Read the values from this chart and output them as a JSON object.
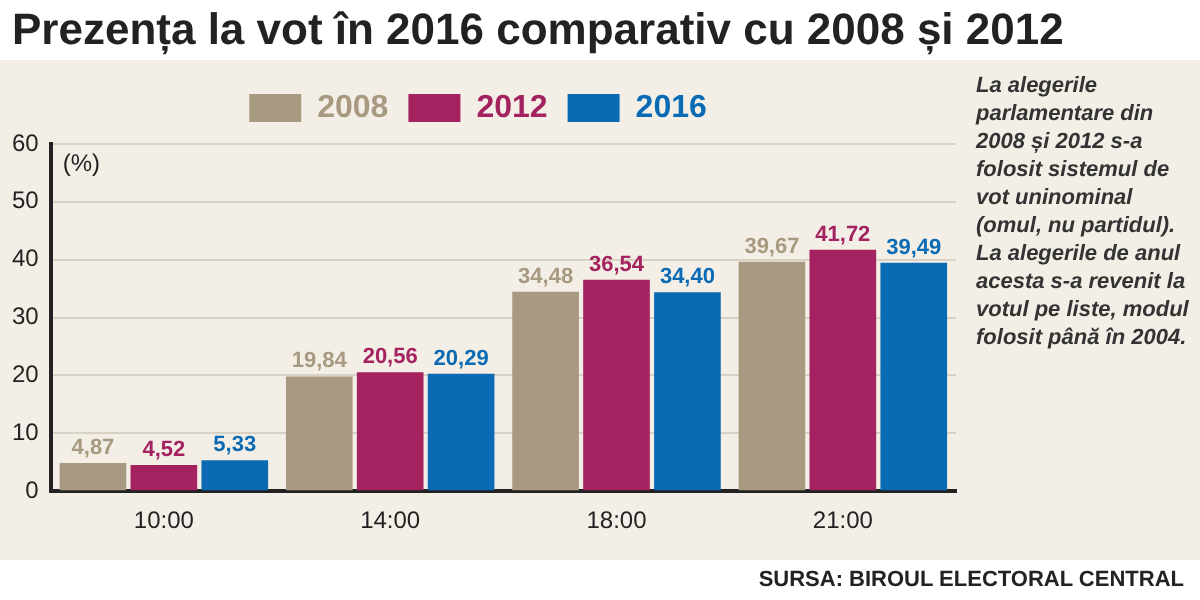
{
  "chart_data": {
    "type": "bar",
    "title": "Prezența la vot  în 2016 comparativ cu  2008 și 2012",
    "ylabel": "(%)",
    "categories": [
      "10:00",
      "14:00",
      "18:00",
      "21:00"
    ],
    "series": [
      {
        "name": "2008",
        "color": "#a89a80",
        "values": [
          4.87,
          19.84,
          34.48,
          39.67
        ],
        "value_labels": [
          "4,87",
          "19,84",
          "34,48",
          "39,67"
        ]
      },
      {
        "name": "2012",
        "color": "#a4225f",
        "values": [
          4.52,
          20.56,
          36.54,
          41.72
        ],
        "value_labels": [
          "4,52",
          "20,56",
          "36,54",
          "41,72"
        ]
      },
      {
        "name": "2016",
        "color": "#0a6ab4",
        "values": [
          5.33,
          20.29,
          34.4,
          39.49
        ],
        "value_labels": [
          "5,33",
          "20,29",
          "34,40",
          "39,49"
        ]
      }
    ],
    "ylim": [
      0,
      60
    ],
    "yticks": [
      0,
      10,
      20,
      30,
      40,
      50,
      60
    ],
    "grid": "y",
    "legend": "top",
    "annotations": [
      "La alegerile parlamentare din 2008 și 2012 s-a folosit sistemul de vot uninominal (omul, nu partidul). La alegerile de anul acesta s-a revenit la votul pe liste, modul folosit până în 2004.",
      "SURSA: BIROUL ELECTORAL CENTRAL"
    ]
  }
}
